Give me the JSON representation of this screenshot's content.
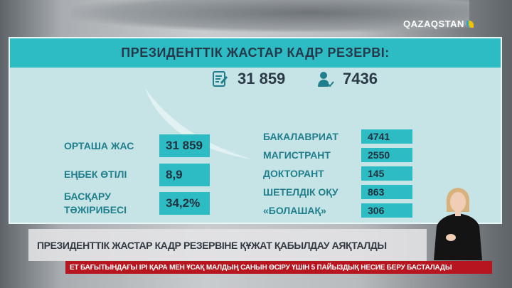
{
  "channel_logo": "QAZAQSTAN",
  "panel": {
    "title": "ПРЕЗИДЕНТТІК ЖАСТАР КАДР РЕЗЕРВІ:",
    "applications": {
      "icon": "document-edit-icon",
      "value": "31 859"
    },
    "approved": {
      "icon": "user-check-icon",
      "value": "7436"
    },
    "left": [
      {
        "label": "ОРТАША ЖАС",
        "value": "31 859"
      },
      {
        "label": "ЕҢБЕК ӨТІЛІ",
        "value": "8,9"
      },
      {
        "label": "БАСҚАРУ ТӘЖІРИБЕСІ",
        "value": "34,2%"
      }
    ],
    "right": [
      {
        "label": "БАКАЛАВРИАТ",
        "value": "4741"
      },
      {
        "label": "МАГИСТРАНТ",
        "value": "2550"
      },
      {
        "label": "ДОКТОРАНТ",
        "value": "145"
      },
      {
        "label": "ШЕТЕЛДІК ОҚУ",
        "value": "863"
      },
      {
        "label": "«БОЛАШАҚ»",
        "value": "306"
      }
    ]
  },
  "caption": "ПРЕЗИДЕНТТІК ЖАСТАР КАДР РЕЗЕРВІНЕ ҚҰЖАТ ҚАБЫЛДАУ АЯҚТАЛДЫ",
  "ticker": "ЕТ БАҒЫТЫНДАҒЫ ІРІ ҚАРА МЕН ҰСАҚ МАЛДЫҢ САНЫН ӨСІРУ ҮШІН 5 ПАЙЫЗДЫҚ НЕСИЕ БЕРУ БАСТАЛАДЫ",
  "colors": {
    "accent": "#2dbcc4",
    "panel": "#c6e4e6",
    "label": "#1f7f8c",
    "ticker": "#b8161e"
  }
}
